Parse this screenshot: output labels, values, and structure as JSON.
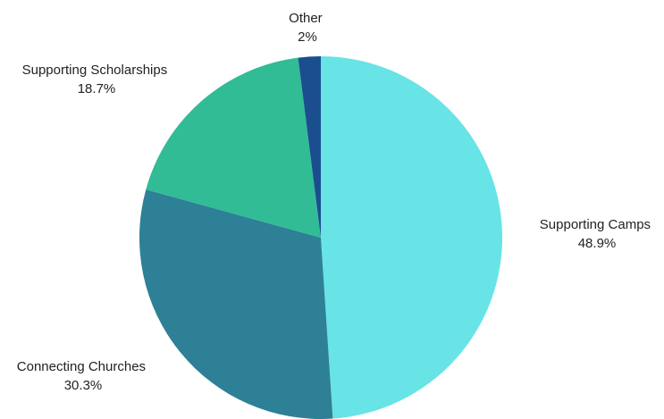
{
  "chart_data": {
    "type": "pie",
    "title": "",
    "start_angle_deg": 0,
    "direction": "clockwise",
    "slices": [
      {
        "label": "Supporting Camps",
        "value": 48.9,
        "value_label": "48.9%",
        "color": "#68e3e6"
      },
      {
        "label": "Connecting Churches",
        "value": 30.3,
        "value_label": "30.3%",
        "color": "#2e8096"
      },
      {
        "label": "Supporting Scholarships",
        "value": 18.7,
        "value_label": "18.7%",
        "color": "#31bc96"
      },
      {
        "label": "Other",
        "value": 2,
        "value_label": "2%",
        "color": "#1b4e8e"
      }
    ]
  }
}
